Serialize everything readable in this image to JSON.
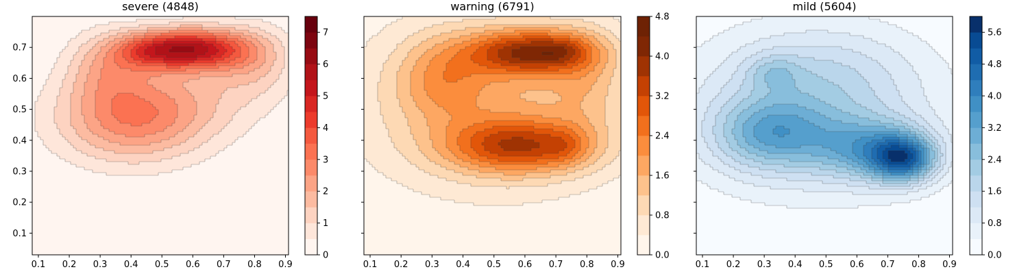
{
  "chart_data": [
    {
      "type": "heatmap",
      "title": "severe (4848)",
      "colormap": "Reds",
      "xlim": [
        0.08,
        0.91
      ],
      "ylim": [
        0.03,
        0.8
      ],
      "xticks": [
        "0.1",
        "0.2",
        "0.3",
        "0.4",
        "0.5",
        "0.6",
        "0.7",
        "0.8",
        "0.9"
      ],
      "yticks": [
        "0.1",
        "0.2",
        "0.3",
        "0.4",
        "0.5",
        "0.6",
        "0.7"
      ],
      "colorbar": {
        "range": [
          0,
          7.5
        ],
        "ticks": [
          "0",
          "1",
          "2",
          "3",
          "4",
          "5",
          "6",
          "7"
        ],
        "levels": [
          0,
          0.5,
          1,
          1.5,
          2,
          2.5,
          3,
          3.5,
          4,
          4.5,
          5,
          5.5,
          6,
          6.5,
          7,
          7.5
        ],
        "colors": [
          "#fff5f0",
          "#fee6da",
          "#fdd3c1",
          "#fcbba1",
          "#fca486",
          "#fc8a6a",
          "#fb7252",
          "#f4593f",
          "#ec3b2c",
          "#d92723",
          "#c4161c",
          "#b11218",
          "#970b13",
          "#7d0510",
          "#67000d"
        ]
      },
      "density_components": [
        {
          "x": 0.6,
          "y": 0.695,
          "sx": 0.12,
          "sy": 0.045,
          "w": 5.2
        },
        {
          "x": 0.45,
          "y": 0.69,
          "sx": 0.08,
          "sy": 0.04,
          "w": 1.8
        },
        {
          "x": 0.32,
          "y": 0.64,
          "sx": 0.09,
          "sy": 0.08,
          "w": 1.5
        },
        {
          "x": 0.4,
          "y": 0.47,
          "sx": 0.17,
          "sy": 0.1,
          "w": 2.7
        },
        {
          "x": 0.8,
          "y": 0.66,
          "sx": 0.09,
          "sy": 0.08,
          "w": 1.3
        },
        {
          "x": 0.6,
          "y": 0.55,
          "sx": 0.18,
          "sy": 0.1,
          "w": 0.9
        }
      ]
    },
    {
      "type": "heatmap",
      "title": "warning (6791)",
      "colormap": "Oranges",
      "xlim": [
        0.08,
        0.91
      ],
      "ylim": [
        0.03,
        0.8
      ],
      "xticks": [
        "0.1",
        "0.2",
        "0.3",
        "0.4",
        "0.5",
        "0.6",
        "0.7",
        "0.8",
        "0.9"
      ],
      "yticks": [],
      "colorbar": {
        "range": [
          0,
          4.8
        ],
        "ticks": [
          "0.0",
          "0.8",
          "1.6",
          "2.4",
          "3.2",
          "4.0",
          "4.8"
        ],
        "levels": [
          0,
          0.4,
          0.8,
          1.2,
          1.6,
          2.0,
          2.4,
          2.8,
          3.2,
          3.6,
          4.0,
          4.4,
          4.8
        ],
        "colors": [
          "#fff5eb",
          "#fee9d4",
          "#fdd9b4",
          "#fdc28c",
          "#fda762",
          "#fb8d3d",
          "#f2701d",
          "#e25609",
          "#c44103",
          "#9f3303",
          "#7f2704",
          "#6e2204"
        ]
      },
      "density_components": [
        {
          "x": 0.62,
          "y": 0.685,
          "sx": 0.14,
          "sy": 0.05,
          "w": 3.2
        },
        {
          "x": 0.72,
          "y": 0.69,
          "sx": 0.05,
          "sy": 0.03,
          "w": 0.6
        },
        {
          "x": 0.58,
          "y": 0.38,
          "sx": 0.16,
          "sy": 0.06,
          "w": 2.6
        },
        {
          "x": 0.73,
          "y": 0.38,
          "sx": 0.05,
          "sy": 0.04,
          "w": 0.6
        },
        {
          "x": 0.33,
          "y": 0.6,
          "sx": 0.1,
          "sy": 0.09,
          "w": 1.1
        },
        {
          "x": 0.5,
          "y": 0.52,
          "sx": 0.3,
          "sy": 0.2,
          "w": 1.5
        },
        {
          "x": 0.8,
          "y": 0.6,
          "sx": 0.08,
          "sy": 0.12,
          "w": 0.7
        }
      ]
    },
    {
      "type": "heatmap",
      "title": "mild (5604)",
      "colormap": "Blues",
      "xlim": [
        0.08,
        0.91
      ],
      "ylim": [
        0.03,
        0.8
      ],
      "xticks": [
        "0.1",
        "0.2",
        "0.3",
        "0.4",
        "0.5",
        "0.6",
        "0.7",
        "0.8",
        "0.9"
      ],
      "yticks": [],
      "colorbar": {
        "range": [
          0,
          6.0
        ],
        "ticks": [
          "0.0",
          "0.8",
          "1.6",
          "2.4",
          "3.2",
          "4.0",
          "4.8",
          "5.6"
        ],
        "levels": [
          0,
          0.4,
          0.8,
          1.2,
          1.6,
          2.0,
          2.4,
          2.8,
          3.2,
          3.6,
          4.0,
          4.4,
          4.8,
          5.2,
          5.6,
          6.0
        ],
        "colors": [
          "#f7fbff",
          "#e9f2fa",
          "#dce9f6",
          "#cee0f2",
          "#bad6eb",
          "#a3cce3",
          "#88bedc",
          "#6daed5",
          "#559fcd",
          "#4090c5",
          "#2f7ebc",
          "#1f6db1",
          "#115ca5",
          "#084b93",
          "#08306b"
        ]
      },
      "density_components": [
        {
          "x": 0.75,
          "y": 0.34,
          "sx": 0.07,
          "sy": 0.05,
          "w": 3.6
        },
        {
          "x": 0.65,
          "y": 0.37,
          "sx": 0.13,
          "sy": 0.07,
          "w": 2.3
        },
        {
          "x": 0.32,
          "y": 0.42,
          "sx": 0.13,
          "sy": 0.08,
          "w": 2.1
        },
        {
          "x": 0.33,
          "y": 0.62,
          "sx": 0.06,
          "sy": 0.04,
          "w": 0.9
        },
        {
          "x": 0.45,
          "y": 0.49,
          "sx": 0.28,
          "sy": 0.18,
          "w": 1.6
        },
        {
          "x": 0.5,
          "y": 0.62,
          "sx": 0.2,
          "sy": 0.1,
          "w": 0.6
        }
      ]
    }
  ]
}
